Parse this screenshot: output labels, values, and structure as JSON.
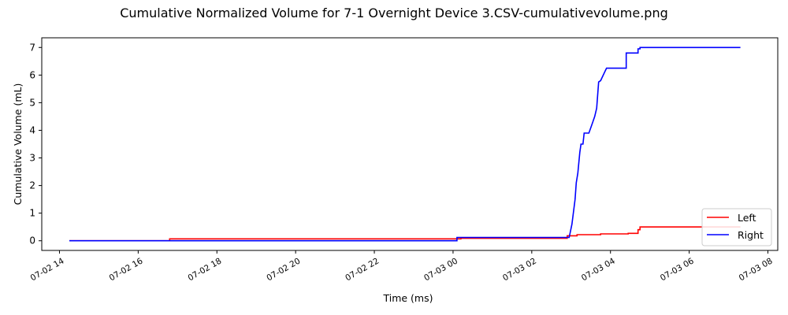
{
  "chart_data": {
    "type": "line",
    "title": "Cumulative Normalized Volume for 7-1 Overnight Device 3.CSV-cumulativevolume.png",
    "xlabel": "Time (ms)",
    "ylabel": "Cumulative Volume (mL)",
    "x_tick_labels": [
      "07-02 14",
      "07-02 16",
      "07-02 18",
      "07-02 20",
      "07-02 22",
      "07-03 00",
      "07-03 02",
      "07-03 04",
      "07-03 06",
      "07-03 08"
    ],
    "y_ticks": [
      0,
      1,
      2,
      3,
      4,
      5,
      6,
      7
    ],
    "xlim_hours": [
      13.55,
      32.25
    ],
    "ylim": [
      -0.35,
      7.35
    ],
    "legend_position": "lower-right",
    "grid": false,
    "series": [
      {
        "name": "Left",
        "color": "#ff0000",
        "x_hours": [
          14.25,
          16.8,
          16.8,
          24.2,
          24.2,
          26.9,
          26.9,
          27.15,
          27.15,
          27.75,
          27.75,
          28.45,
          28.45,
          28.7,
          28.7,
          28.75,
          28.75,
          31.3
        ],
        "values": [
          0,
          0,
          0.07,
          0.07,
          0.09,
          0.09,
          0.18,
          0.18,
          0.22,
          0.22,
          0.25,
          0.25,
          0.27,
          0.27,
          0.4,
          0.4,
          0.5,
          0.5
        ]
      },
      {
        "name": "Right",
        "color": "#0000ff",
        "x_hours": [
          14.25,
          24.1,
          24.1,
          26.95,
          27.02,
          27.1,
          27.13,
          27.17,
          27.22,
          27.25,
          27.3,
          27.33,
          27.35,
          27.45,
          27.5,
          27.55,
          27.6,
          27.65,
          27.7,
          27.75,
          27.8,
          27.85,
          27.9,
          28.4,
          28.4,
          28.7,
          28.7,
          28.75,
          28.75,
          31.3
        ],
        "values": [
          0,
          0,
          0.12,
          0.12,
          0.6,
          1.5,
          2.1,
          2.45,
          3.2,
          3.5,
          3.5,
          3.9,
          3.9,
          3.9,
          4.1,
          4.3,
          4.5,
          4.8,
          5.75,
          5.8,
          5.95,
          6.1,
          6.25,
          6.25,
          6.8,
          6.8,
          6.95,
          6.95,
          7.0,
          7.0
        ]
      }
    ]
  }
}
